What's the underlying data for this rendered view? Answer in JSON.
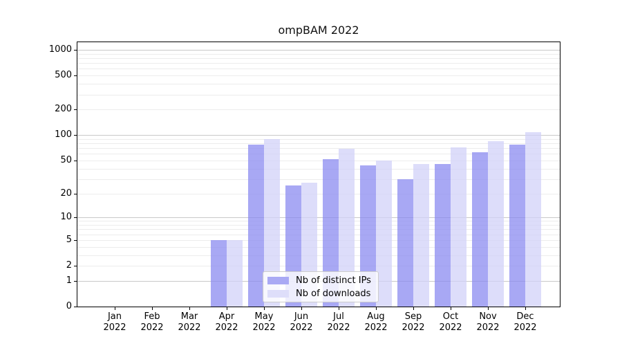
{
  "chart_data": {
    "type": "bar",
    "title": "ompBAM 2022",
    "x": {
      "categories": [
        "Jan",
        "Feb",
        "Mar",
        "Apr",
        "May",
        "Jun",
        "Jul",
        "Aug",
        "Sep",
        "Oct",
        "Nov",
        "Dec"
      ],
      "year": "2022"
    },
    "series": [
      {
        "name": "Nb of distinct IPs",
        "fill": "#8787F0",
        "fill_alpha": 0.72,
        "legend_fill": "#A9A9F4",
        "values": [
          0,
          0,
          0,
          5,
          77,
          25,
          52,
          44,
          30,
          45,
          63,
          77
        ]
      },
      {
        "name": "Nb of downloads",
        "fill": "#D2D2F8",
        "fill_alpha": 0.75,
        "legend_fill": "#DEDEFA",
        "values": [
          0,
          0,
          0,
          5,
          90,
          27,
          69,
          50,
          45,
          71,
          84,
          109
        ]
      }
    ],
    "y_axis": {
      "ticks": [
        0,
        1,
        2,
        5,
        10,
        20,
        50,
        100,
        200,
        500,
        1000
      ],
      "scale": "log1p",
      "range": [
        0,
        1180
      ],
      "major_gridlines": [
        1,
        10,
        100,
        1000
      ]
    },
    "legend_position": "lower center inside",
    "grid": "horizontal"
  },
  "colors": {
    "major_grid": "#C8C8C8",
    "minor_grid": "#ECECEC",
    "spine": "#000000",
    "text": "#000000",
    "background": "#FFFFFF"
  }
}
